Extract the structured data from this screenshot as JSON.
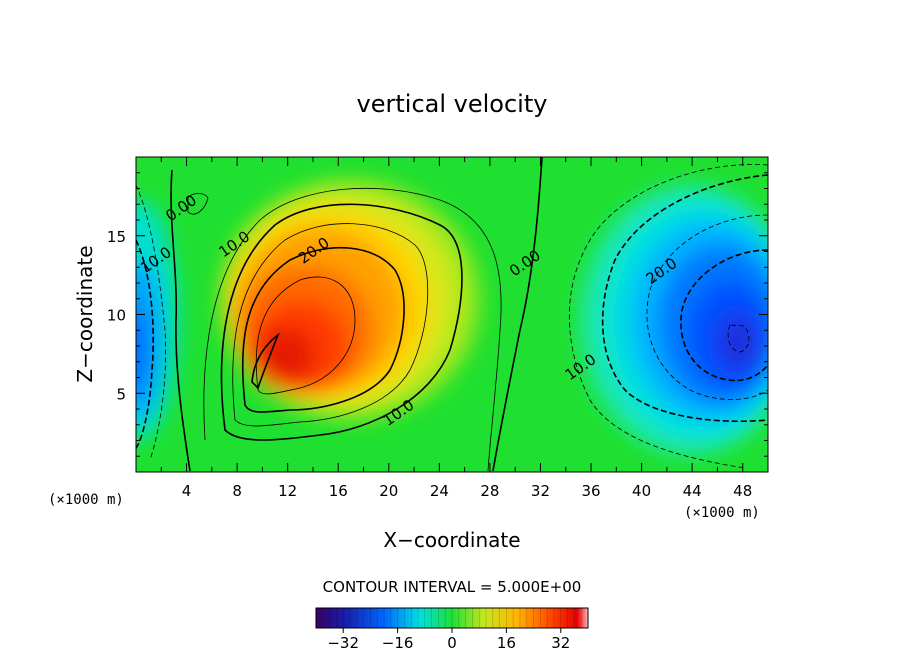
{
  "chart_data": {
    "type": "heatmap",
    "title": "vertical velocity",
    "xlabel": "X−coordinate",
    "ylabel": "Z−coordinate",
    "x_unit": "(×1000 m)",
    "x_unit_right": "(×1000 m)",
    "xlim": [
      0,
      50
    ],
    "ylim": [
      0,
      20
    ],
    "x_ticks": [
      4,
      8,
      12,
      16,
      20,
      24,
      28,
      32,
      36,
      40,
      44,
      48
    ],
    "y_ticks": [
      5,
      10,
      15
    ],
    "contour_interval_text": "CONTOUR INTERVAL = 5.000E+00",
    "colorbar": {
      "range": [
        -40,
        40
      ],
      "ticks": [
        -32,
        -16,
        0,
        16,
        32
      ],
      "tick_labels": [
        "−32",
        "−16",
        "0",
        "16",
        "32"
      ]
    },
    "contour_labels": [
      {
        "text": "0.00",
        "x": 3.8,
        "z": 16.5
      },
      {
        "text": "10.0",
        "x": 1.8,
        "z": 13.2
      },
      {
        "text": "10.0",
        "x": 8.0,
        "z": 14.2
      },
      {
        "text": "20.0",
        "x": 14.3,
        "z": 13.8
      },
      {
        "text": "10.0",
        "x": 21.0,
        "z": 3.5
      },
      {
        "text": "0.00",
        "x": 31.0,
        "z": 13.0
      },
      {
        "text": "10.0",
        "x": 35.4,
        "z": 6.4
      },
      {
        "text": "20.0",
        "x": 41.8,
        "z": 12.5
      }
    ],
    "features": [
      {
        "sign": "positive",
        "peak": 30,
        "x": 12,
        "z": 8
      },
      {
        "sign": "negative",
        "peak": -30,
        "x": 47,
        "z": 8.5
      },
      {
        "sign": "negative",
        "peak": -12,
        "x": 0.5,
        "z": 8.5
      }
    ]
  }
}
